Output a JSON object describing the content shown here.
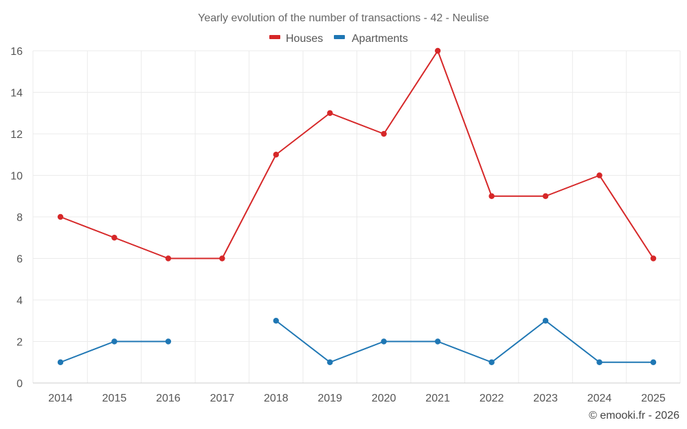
{
  "chart_data": {
    "type": "line",
    "title": "Yearly evolution of the number of transactions - 42 - Neulise",
    "xlabel": "",
    "ylabel": "",
    "categories": [
      "2014",
      "2015",
      "2016",
      "2017",
      "2018",
      "2019",
      "2020",
      "2021",
      "2022",
      "2023",
      "2024",
      "2025"
    ],
    "ylim": [
      0,
      16
    ],
    "yticks": [
      0,
      2,
      4,
      6,
      8,
      10,
      12,
      14,
      16
    ],
    "grid": true,
    "legend_position": "top-center",
    "series": [
      {
        "name": "Houses",
        "color": "#d62728",
        "values": [
          8,
          7,
          6,
          6,
          11,
          13,
          12,
          16,
          9,
          9,
          10,
          6
        ]
      },
      {
        "name": "Apartments",
        "color": "#1f77b4",
        "values": [
          1,
          2,
          2,
          null,
          3,
          1,
          2,
          2,
          1,
          3,
          1,
          1
        ]
      }
    ],
    "credit": "© emooki.fr - 2026"
  },
  "colors": {
    "grid": "#ebebeb",
    "axis": "#cccccc",
    "houses": "#d62728",
    "apartments": "#1f77b4"
  }
}
